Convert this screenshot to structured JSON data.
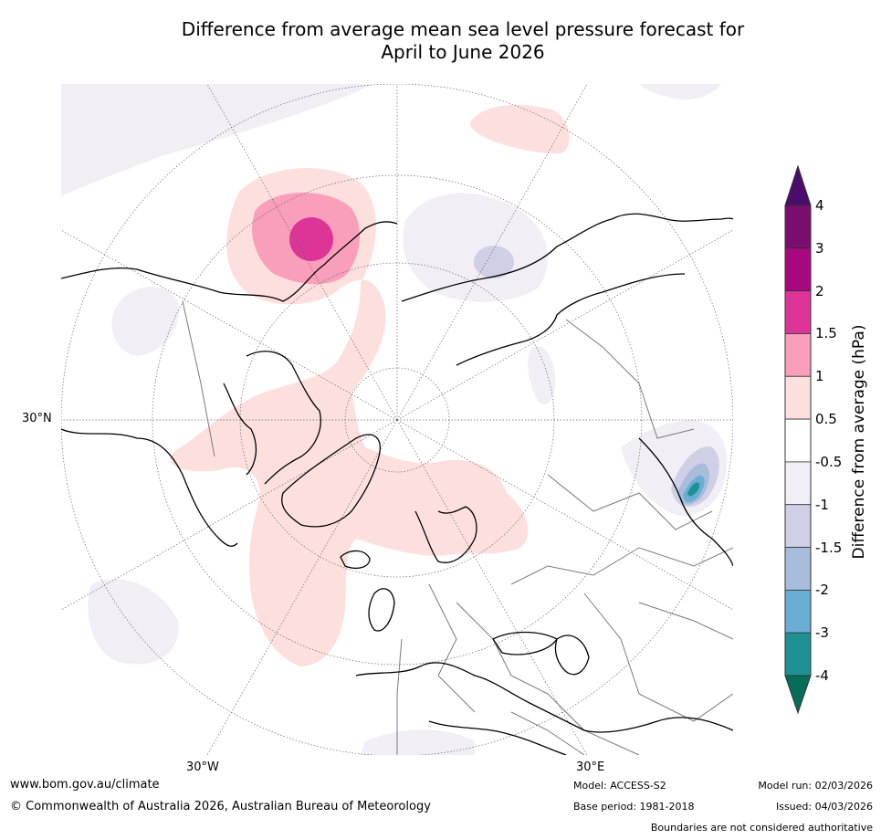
{
  "title": {
    "line1": "Difference from average mean sea level pressure forecast for",
    "line2": "April to June 2026"
  },
  "colorbar": {
    "axis_title": "Difference from average (hPa)",
    "tick_labels": [
      "4",
      "3",
      "2",
      "1.5",
      "1",
      "0.5",
      "-0.5",
      "-1",
      "-1.5",
      "-2",
      "-3",
      "-4"
    ],
    "band_colors": [
      "#7b0d6f",
      "#a8087f",
      "#dd3497",
      "#f99ebb",
      "#fde0dd",
      "#ffffff",
      "#f2eef5",
      "#cfcfe6",
      "#a8bcdb",
      "#6aaed3",
      "#1f9195"
    ],
    "over_color": "#4a0d6d",
    "under_color": "#066d59"
  },
  "map": {
    "lat_labels": [
      "30°N"
    ],
    "lon_labels": [
      "30°W",
      "30°E"
    ]
  },
  "footer": {
    "website": "www.bom.gov.au/climate",
    "copyright": "© Commonwealth of Australia 2026, Australian Bureau of Meteorology",
    "model": "Model: ACCESS-S2",
    "base_period": "Base period: 1981-2018",
    "model_run": "Model run: 02/03/2026",
    "issued": "Issued: 04/03/2026",
    "disclaimer": "Boundaries are not considered authoritative"
  }
}
